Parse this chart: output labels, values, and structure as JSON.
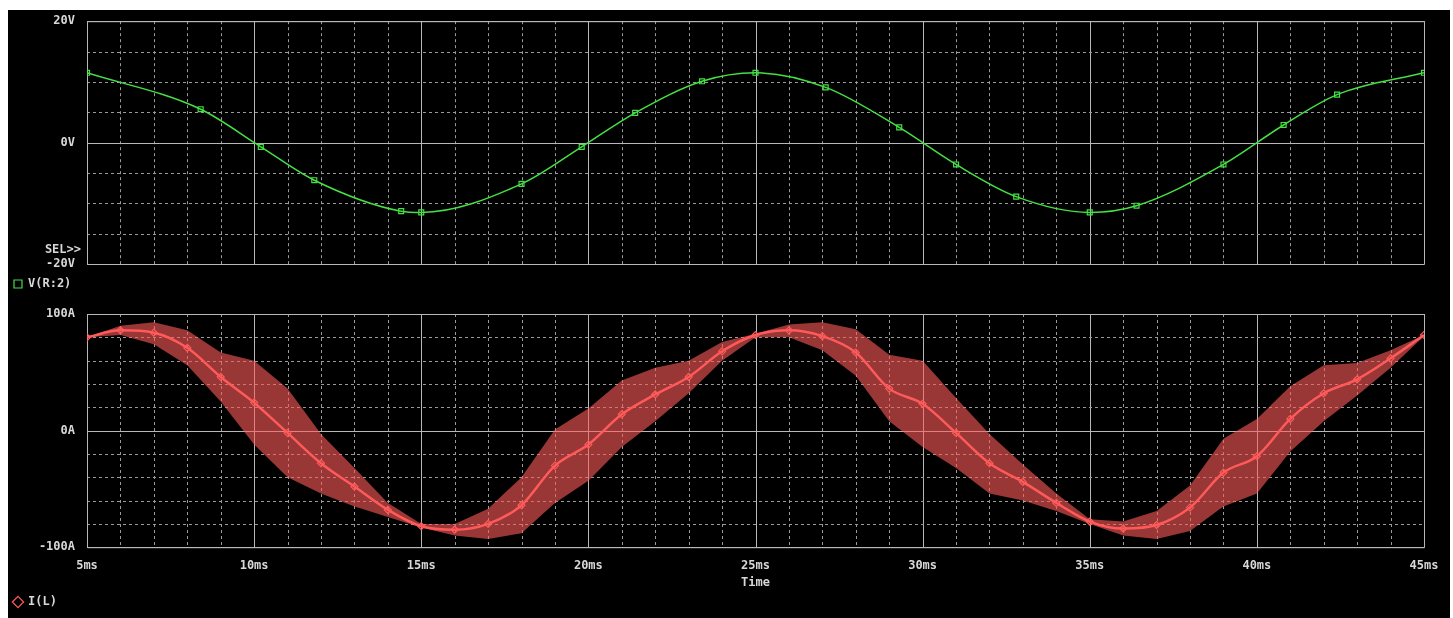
{
  "chart_data": [
    {
      "type": "line",
      "xlim": [
        5,
        45
      ],
      "xticks": [
        {
          "value": 5,
          "label": null
        },
        {
          "value": 6,
          "label": null
        },
        {
          "value": 7,
          "label": null
        },
        {
          "value": 8,
          "label": null
        },
        {
          "value": 9,
          "label": null
        },
        {
          "value": 10,
          "label": null
        },
        {
          "value": 11,
          "label": null
        },
        {
          "value": 12,
          "label": null
        },
        {
          "value": 13,
          "label": null
        },
        {
          "value": 14,
          "label": null
        },
        {
          "value": 15,
          "label": null
        },
        {
          "value": 16,
          "label": null
        },
        {
          "value": 17,
          "label": null
        },
        {
          "value": 18,
          "label": null
        },
        {
          "value": 19,
          "label": null
        },
        {
          "value": 20,
          "label": null
        },
        {
          "value": 21,
          "label": null
        },
        {
          "value": 22,
          "label": null
        },
        {
          "value": 23,
          "label": null
        },
        {
          "value": 24,
          "label": null
        },
        {
          "value": 25,
          "label": null
        },
        {
          "value": 26,
          "label": null
        },
        {
          "value": 27,
          "label": null
        },
        {
          "value": 28,
          "label": null
        },
        {
          "value": 29,
          "label": null
        },
        {
          "value": 30,
          "label": null
        },
        {
          "value": 31,
          "label": null
        },
        {
          "value": 32,
          "label": null
        },
        {
          "value": 33,
          "label": null
        },
        {
          "value": 34,
          "label": null
        },
        {
          "value": 35,
          "label": null
        },
        {
          "value": 36,
          "label": null
        },
        {
          "value": 37,
          "label": null
        },
        {
          "value": 38,
          "label": null
        },
        {
          "value": 39,
          "label": null
        },
        {
          "value": 40,
          "label": null
        },
        {
          "value": 41,
          "label": null
        },
        {
          "value": 42,
          "label": null
        },
        {
          "value": 43,
          "label": null
        },
        {
          "value": 44,
          "label": null
        },
        {
          "value": 45,
          "label": null
        }
      ],
      "ylim": [
        -20,
        20
      ],
      "yticks": [
        {
          "value": -20,
          "label": "-20V"
        },
        {
          "value": -15,
          "label": null
        },
        {
          "value": -10,
          "label": null
        },
        {
          "value": -5,
          "label": null
        },
        {
          "value": 0,
          "label": "0V"
        },
        {
          "value": 5,
          "label": null
        },
        {
          "value": 10,
          "label": null
        },
        {
          "value": 15,
          "label": null
        },
        {
          "value": 20,
          "label": "20V"
        }
      ],
      "tick_labels": "y",
      "grid": true,
      "legend": "bottom left",
      "marker": "square",
      "line_style": "solid",
      "annotations": [
        "SEL>>"
      ],
      "series": [
        {
          "name": "V(R:2)",
          "color": "#44e044",
          "x": [
            5,
            8.4,
            10.2,
            11.8,
            14.4,
            15,
            18,
            19.8,
            21.4,
            23.4,
            25,
            27.1,
            29.3,
            31,
            32.8,
            35,
            36.4,
            39,
            40.8,
            42.4,
            45
          ],
          "values": [
            11.5,
            5.5,
            -0.7,
            -6.2,
            -11.3,
            -11.5,
            -6.8,
            -0.7,
            4.9,
            10.1,
            11.5,
            9.1,
            2.5,
            -3.6,
            -8.9,
            -11.5,
            -10.4,
            -3.6,
            2.9,
            7.9,
            11.5
          ]
        }
      ]
    },
    {
      "type": "line",
      "xlim": [
        5,
        45
      ],
      "xticks": [
        {
          "value": 5,
          "label": "5ms"
        },
        {
          "value": 6,
          "label": null
        },
        {
          "value": 7,
          "label": null
        },
        {
          "value": 8,
          "label": null
        },
        {
          "value": 9,
          "label": null
        },
        {
          "value": 10,
          "label": "10ms"
        },
        {
          "value": 11,
          "label": null
        },
        {
          "value": 12,
          "label": null
        },
        {
          "value": 13,
          "label": null
        },
        {
          "value": 14,
          "label": null
        },
        {
          "value": 15,
          "label": "15ms"
        },
        {
          "value": 16,
          "label": null
        },
        {
          "value": 17,
          "label": null
        },
        {
          "value": 18,
          "label": null
        },
        {
          "value": 19,
          "label": null
        },
        {
          "value": 20,
          "label": "20ms"
        },
        {
          "value": 21,
          "label": null
        },
        {
          "value": 22,
          "label": null
        },
        {
          "value": 23,
          "label": null
        },
        {
          "value": 24,
          "label": null
        },
        {
          "value": 25,
          "label": "25ms"
        },
        {
          "value": 26,
          "label": null
        },
        {
          "value": 27,
          "label": null
        },
        {
          "value": 28,
          "label": null
        },
        {
          "value": 29,
          "label": null
        },
        {
          "value": 30,
          "label": "30ms"
        },
        {
          "value": 31,
          "label": null
        },
        {
          "value": 32,
          "label": null
        },
        {
          "value": 33,
          "label": null
        },
        {
          "value": 34,
          "label": null
        },
        {
          "value": 35,
          "label": "35ms"
        },
        {
          "value": 36,
          "label": null
        },
        {
          "value": 37,
          "label": null
        },
        {
          "value": 38,
          "label": null
        },
        {
          "value": 39,
          "label": null
        },
        {
          "value": 40,
          "label": "40ms"
        },
        {
          "value": 41,
          "label": null
        },
        {
          "value": 42,
          "label": null
        },
        {
          "value": 43,
          "label": null
        },
        {
          "value": 44,
          "label": null
        },
        {
          "value": 45,
          "label": "45ms"
        }
      ],
      "ylim": [
        -100,
        100
      ],
      "yticks": [
        {
          "value": -100,
          "label": "-100A"
        },
        {
          "value": -80,
          "label": null
        },
        {
          "value": -60,
          "label": null
        },
        {
          "value": -40,
          "label": null
        },
        {
          "value": -20,
          "label": null
        },
        {
          "value": 0,
          "label": "0A"
        },
        {
          "value": 20,
          "label": null
        },
        {
          "value": 40,
          "label": null
        },
        {
          "value": 60,
          "label": null
        },
        {
          "value": 80,
          "label": null
        },
        {
          "value": 100,
          "label": "100A"
        }
      ],
      "xlabel": "Time",
      "grid": true,
      "legend": "bottom left",
      "marker": "diamond",
      "line_style": "solid",
      "series": [
        {
          "name": "I(L)",
          "color": "#ff5a5a",
          "x": [
            5,
            6,
            7,
            8,
            9,
            10,
            11,
            12,
            13,
            14,
            15,
            16,
            17,
            18,
            19,
            20,
            21,
            22,
            23,
            24,
            25,
            26,
            27,
            28,
            29,
            30,
            31,
            32,
            33,
            34,
            35,
            36,
            37,
            38,
            39,
            40,
            41,
            42,
            43,
            44,
            45
          ],
          "values": [
            80,
            86,
            84,
            71,
            46,
            24,
            -2,
            -28,
            -48,
            -68,
            -82,
            -85,
            -80,
            -64,
            -30,
            -12,
            14,
            31,
            46,
            68,
            82,
            86,
            81,
            67,
            36,
            23,
            -2,
            -28,
            -44,
            -62,
            -78,
            -84,
            -81,
            -66,
            -36,
            -22,
            10,
            32,
            44,
            62,
            82
          ],
          "lower": [
            80,
            82,
            74,
            56,
            25,
            -12,
            -40,
            -54,
            -65,
            -74,
            -83,
            -90,
            -93,
            -88,
            -62,
            -43,
            -14,
            8,
            32,
            60,
            80,
            80,
            69,
            47,
            8,
            -14,
            -32,
            -54,
            -60,
            -69,
            -80,
            -90,
            -93,
            -86,
            -65,
            -54,
            -18,
            8,
            30,
            54,
            81
          ],
          "upper": [
            80,
            90,
            93,
            86,
            67,
            60,
            36,
            -3,
            -32,
            -62,
            -80,
            -80,
            -67,
            -40,
            1,
            19,
            43,
            54,
            60,
            76,
            83,
            91,
            93,
            87,
            65,
            60,
            28,
            -3,
            -29,
            -54,
            -76,
            -78,
            -69,
            -47,
            -7,
            10,
            38,
            56,
            58,
            69,
            82
          ]
        }
      ]
    }
  ]
}
